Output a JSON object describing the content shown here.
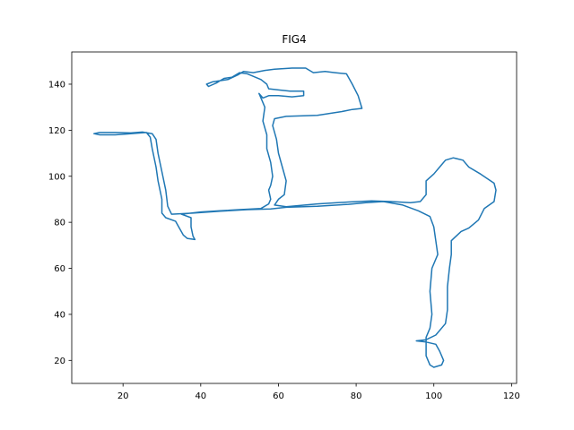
{
  "chart_data": {
    "type": "line",
    "title": "FIG4",
    "xlabel": "",
    "ylabel": "",
    "xlim": [
      6.8,
      121.3
    ],
    "ylim": [
      10.0,
      154.0
    ],
    "x_ticks": [
      20,
      40,
      60,
      80,
      100,
      120
    ],
    "y_ticks": [
      20,
      40,
      60,
      80,
      100,
      120,
      140
    ],
    "grid": false,
    "line_color": "#1f77b4",
    "series": [
      {
        "points": [
          [
            38.5,
            72.5
          ],
          [
            36.5,
            73.0
          ],
          [
            35.5,
            74.5
          ],
          [
            34.5,
            77.5
          ],
          [
            33.5,
            80.5
          ],
          [
            31.0,
            82.0
          ],
          [
            30.0,
            84.0
          ],
          [
            30.0,
            90.0
          ],
          [
            29.0,
            98.0
          ],
          [
            28.5,
            104.0
          ],
          [
            27.5,
            112.0
          ],
          [
            27.0,
            117.0
          ],
          [
            26.0,
            119.0
          ],
          [
            22.0,
            118.5
          ],
          [
            18.0,
            118.0
          ],
          [
            14.0,
            118.0
          ],
          [
            12.5,
            118.5
          ],
          [
            14.0,
            119.0
          ],
          [
            18.0,
            119.0
          ],
          [
            22.0,
            118.8
          ],
          [
            25.0,
            119.2
          ],
          [
            27.5,
            118.5
          ],
          [
            28.5,
            116.0
          ],
          [
            29.0,
            110.0
          ],
          [
            30.0,
            102.0
          ],
          [
            31.0,
            94.0
          ],
          [
            31.5,
            87.0
          ],
          [
            32.5,
            83.5
          ],
          [
            38.0,
            84.0
          ],
          [
            45.0,
            84.8
          ],
          [
            52.0,
            85.5
          ],
          [
            58.0,
            85.8
          ],
          [
            62.0,
            86.5
          ],
          [
            70.0,
            87.0
          ],
          [
            78.0,
            87.8
          ],
          [
            82.5,
            88.5
          ],
          [
            87.0,
            89.0
          ],
          [
            92.0,
            87.5
          ],
          [
            96.0,
            85.0
          ],
          [
            99.0,
            82.5
          ],
          [
            100.0,
            78.0
          ],
          [
            100.5,
            72.0
          ],
          [
            101.0,
            66.0
          ],
          [
            99.5,
            60.0
          ],
          [
            99.0,
            50.0
          ],
          [
            99.5,
            40.0
          ],
          [
            99.0,
            34.0
          ],
          [
            98.0,
            30.0
          ],
          [
            98.0,
            22.0
          ],
          [
            99.0,
            18.0
          ],
          [
            100.0,
            17.0
          ],
          [
            102.0,
            18.0
          ],
          [
            102.5,
            20.0
          ],
          [
            101.5,
            24.0
          ],
          [
            100.5,
            27.0
          ],
          [
            98.0,
            28.0
          ],
          [
            95.5,
            28.5
          ],
          [
            98.0,
            29.0
          ],
          [
            100.5,
            31.0
          ],
          [
            103.0,
            36.0
          ],
          [
            103.5,
            42.0
          ],
          [
            103.5,
            52.0
          ],
          [
            104.0,
            60.0
          ],
          [
            104.5,
            66.0
          ],
          [
            104.5,
            72.0
          ],
          [
            107.0,
            76.0
          ],
          [
            109.0,
            77.5
          ],
          [
            111.5,
            81.0
          ],
          [
            113.0,
            86.0
          ],
          [
            115.5,
            89.0
          ],
          [
            116.0,
            94.0
          ],
          [
            115.5,
            97.0
          ],
          [
            112.0,
            101.0
          ],
          [
            109.0,
            104.0
          ],
          [
            107.5,
            107.0
          ],
          [
            105.0,
            108.0
          ],
          [
            103.0,
            107.0
          ],
          [
            102.0,
            105.0
          ],
          [
            100.0,
            101.0
          ],
          [
            98.0,
            98.0
          ],
          [
            98.0,
            92.0
          ],
          [
            96.5,
            89.0
          ],
          [
            94.0,
            88.5
          ],
          [
            89.0,
            89.0
          ],
          [
            84.0,
            89.3
          ],
          [
            78.0,
            88.8
          ],
          [
            70.0,
            88.0
          ],
          [
            62.0,
            86.8
          ],
          [
            59.0,
            87.5
          ],
          [
            60.0,
            90.0
          ],
          [
            61.5,
            92.0
          ],
          [
            62.0,
            98.0
          ],
          [
            61.0,
            104.0
          ],
          [
            60.0,
            110.0
          ],
          [
            59.5,
            116.0
          ],
          [
            58.5,
            122.0
          ],
          [
            59.0,
            125.0
          ],
          [
            62.0,
            126.0
          ],
          [
            70.0,
            126.5
          ],
          [
            76.0,
            128.0
          ],
          [
            79.0,
            129.0
          ],
          [
            81.5,
            129.5
          ],
          [
            80.5,
            135.0
          ],
          [
            79.0,
            140.0
          ],
          [
            77.5,
            144.5
          ],
          [
            74.5,
            145.0
          ],
          [
            72.0,
            145.5
          ],
          [
            69.0,
            145.0
          ],
          [
            67.0,
            147.0
          ],
          [
            63.5,
            147.0
          ],
          [
            59.0,
            146.5
          ],
          [
            56.5,
            146.0
          ],
          [
            53.5,
            145.0
          ],
          [
            51.0,
            145.5
          ],
          [
            49.5,
            144.0
          ],
          [
            47.0,
            142.0
          ],
          [
            43.0,
            141.0
          ],
          [
            41.5,
            140.0
          ],
          [
            42.0,
            139.0
          ],
          [
            44.0,
            140.5
          ],
          [
            46.0,
            142.5
          ],
          [
            48.0,
            143.0
          ],
          [
            50.0,
            145.0
          ],
          [
            52.0,
            144.5
          ],
          [
            55.5,
            142.0
          ],
          [
            57.0,
            140.0
          ],
          [
            57.5,
            138.0
          ],
          [
            60.0,
            137.5
          ],
          [
            63.0,
            137.0
          ],
          [
            66.5,
            137.0
          ],
          [
            66.5,
            135.0
          ],
          [
            63.5,
            134.5
          ],
          [
            60.0,
            135.0
          ],
          [
            57.5,
            135.0
          ],
          [
            56.0,
            134.0
          ],
          [
            55.0,
            136.0
          ],
          [
            55.5,
            134.0
          ],
          [
            56.5,
            130.0
          ],
          [
            56.0,
            124.0
          ],
          [
            57.0,
            118.0
          ],
          [
            57.0,
            112.0
          ],
          [
            58.0,
            106.0
          ],
          [
            58.5,
            100.0
          ],
          [
            58.0,
            96.0
          ],
          [
            57.5,
            94.0
          ],
          [
            58.0,
            90.0
          ],
          [
            57.5,
            88.0
          ],
          [
            55.5,
            86.0
          ],
          [
            50.0,
            85.5
          ],
          [
            45.0,
            85.0
          ],
          [
            40.0,
            84.5
          ],
          [
            35.0,
            83.5
          ],
          [
            37.5,
            82.0
          ],
          [
            37.5,
            78.0
          ],
          [
            38.0,
            74.0
          ],
          [
            38.5,
            72.5
          ]
        ]
      }
    ]
  }
}
